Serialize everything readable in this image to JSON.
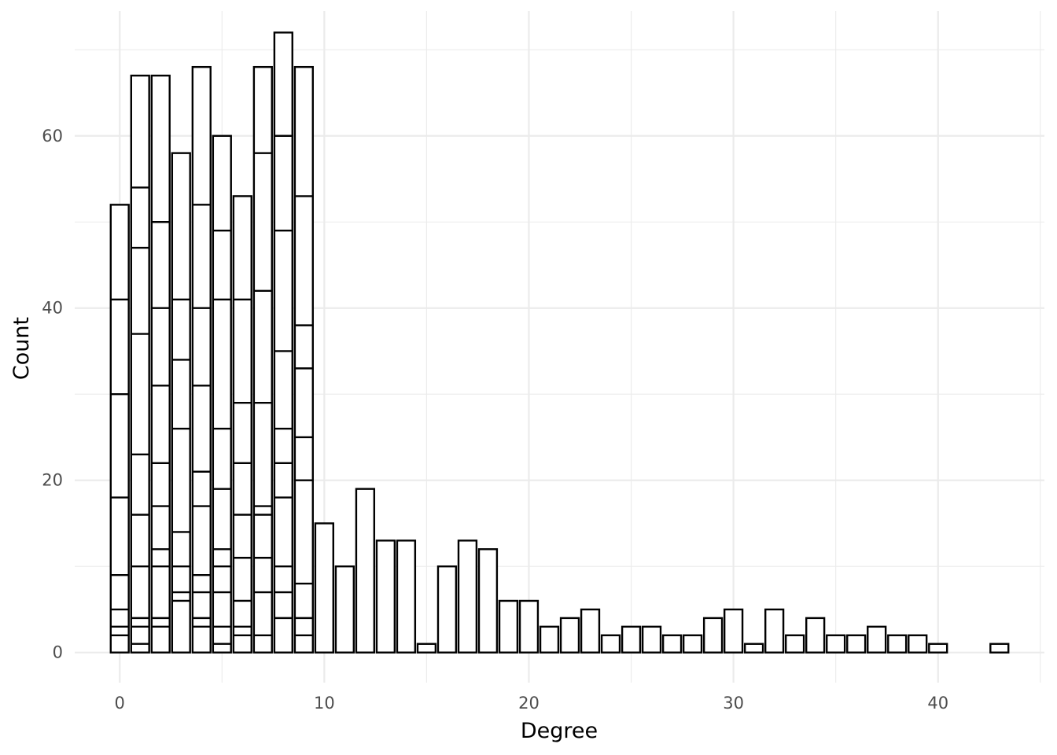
{
  "chart_data": {
    "type": "bar",
    "title": "",
    "xlabel": "Degree",
    "ylabel": "Count",
    "xlim": [
      -2.2,
      45.2
    ],
    "ylim": [
      -3.5,
      74.5
    ],
    "x_ticks": [
      0,
      10,
      20,
      30,
      40
    ],
    "y_ticks": [
      0,
      20,
      40,
      60
    ],
    "grid": true,
    "legend": "none",
    "bars": [
      {
        "x": 0,
        "value": 52,
        "stack_boundaries": [
          2,
          3,
          5,
          9,
          18,
          30,
          41
        ]
      },
      {
        "x": 1,
        "value": 67,
        "stack_boundaries": [
          1,
          3,
          4,
          10,
          16,
          23,
          37,
          47,
          54
        ]
      },
      {
        "x": 2,
        "value": 67,
        "stack_boundaries": [
          3,
          4,
          10,
          12,
          17,
          22,
          31,
          40,
          50
        ]
      },
      {
        "x": 3,
        "value": 58,
        "stack_boundaries": [
          6,
          7,
          10,
          14,
          26,
          34,
          41
        ]
      },
      {
        "x": 4,
        "value": 68,
        "stack_boundaries": [
          3,
          4,
          7,
          9,
          17,
          21,
          31,
          40,
          52
        ]
      },
      {
        "x": 5,
        "value": 60,
        "stack_boundaries": [
          1,
          3,
          7,
          10,
          12,
          19,
          26,
          41,
          49
        ]
      },
      {
        "x": 6,
        "value": 53,
        "stack_boundaries": [
          2,
          3,
          6,
          11,
          16,
          22,
          29,
          41
        ]
      },
      {
        "x": 7,
        "value": 68,
        "stack_boundaries": [
          2,
          7,
          11,
          16,
          17,
          29,
          42,
          58
        ]
      },
      {
        "x": 8,
        "value": 72,
        "stack_boundaries": [
          4,
          7,
          10,
          18,
          22,
          26,
          35,
          49,
          60
        ]
      },
      {
        "x": 9,
        "value": 68,
        "stack_boundaries": [
          2,
          4,
          8,
          20,
          25,
          33,
          38,
          53
        ]
      },
      {
        "x": 10,
        "value": 15,
        "stack_boundaries": []
      },
      {
        "x": 11,
        "value": 10,
        "stack_boundaries": []
      },
      {
        "x": 12,
        "value": 19,
        "stack_boundaries": []
      },
      {
        "x": 13,
        "value": 13,
        "stack_boundaries": []
      },
      {
        "x": 14,
        "value": 13,
        "stack_boundaries": []
      },
      {
        "x": 15,
        "value": 1,
        "stack_boundaries": []
      },
      {
        "x": 16,
        "value": 10,
        "stack_boundaries": []
      },
      {
        "x": 17,
        "value": 13,
        "stack_boundaries": []
      },
      {
        "x": 18,
        "value": 12,
        "stack_boundaries": []
      },
      {
        "x": 19,
        "value": 6,
        "stack_boundaries": []
      },
      {
        "x": 20,
        "value": 6,
        "stack_boundaries": []
      },
      {
        "x": 21,
        "value": 3,
        "stack_boundaries": []
      },
      {
        "x": 22,
        "value": 4,
        "stack_boundaries": []
      },
      {
        "x": 23,
        "value": 5,
        "stack_boundaries": []
      },
      {
        "x": 24,
        "value": 2,
        "stack_boundaries": []
      },
      {
        "x": 25,
        "value": 3,
        "stack_boundaries": []
      },
      {
        "x": 26,
        "value": 3,
        "stack_boundaries": []
      },
      {
        "x": 27,
        "value": 2,
        "stack_boundaries": []
      },
      {
        "x": 28,
        "value": 2,
        "stack_boundaries": []
      },
      {
        "x": 29,
        "value": 4,
        "stack_boundaries": []
      },
      {
        "x": 30,
        "value": 5,
        "stack_boundaries": []
      },
      {
        "x": 31,
        "value": 1,
        "stack_boundaries": []
      },
      {
        "x": 32,
        "value": 5,
        "stack_boundaries": []
      },
      {
        "x": 33,
        "value": 2,
        "stack_boundaries": []
      },
      {
        "x": 34,
        "value": 4,
        "stack_boundaries": []
      },
      {
        "x": 35,
        "value": 2,
        "stack_boundaries": []
      },
      {
        "x": 36,
        "value": 2,
        "stack_boundaries": []
      },
      {
        "x": 37,
        "value": 3,
        "stack_boundaries": []
      },
      {
        "x": 38,
        "value": 2,
        "stack_boundaries": []
      },
      {
        "x": 39,
        "value": 2,
        "stack_boundaries": []
      },
      {
        "x": 40,
        "value": 1,
        "stack_boundaries": []
      },
      {
        "x": 43,
        "value": 1,
        "stack_boundaries": []
      }
    ]
  }
}
